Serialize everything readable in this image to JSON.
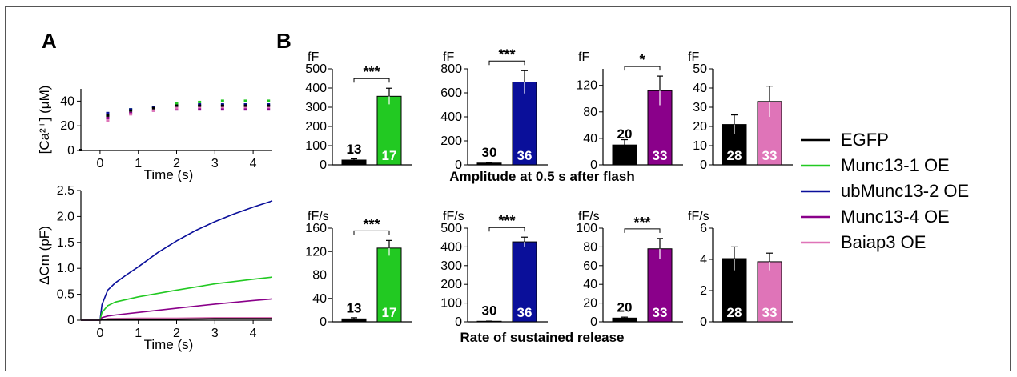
{
  "panels": {
    "a": "A",
    "b": "B"
  },
  "colors": {
    "EGFP": "#000000",
    "Munc13-1 OE": "#22c922",
    "ubMunc13-2 OE": "#0a0f9a",
    "Munc13-4 OE": "#8a008a",
    "Baiap3 OE": "#df74b8"
  },
  "legend": [
    "EGFP",
    "Munc13-1 OE",
    "ubMunc13-2 OE",
    "Munc13-4 OE",
    "Baiap3 OE"
  ],
  "captions": {
    "amplitude": "Amplitude at 0.5 s after flash",
    "rate": "Rate of sustained release"
  },
  "chart_data": [
    {
      "id": "ca",
      "type": "scatter",
      "ylabel": "[Ca²⁺] (μM)",
      "xlabel": "Time (s)",
      "xlim": [
        -0.5,
        4.5
      ],
      "ylim": [
        0,
        50
      ],
      "xticks": [
        0,
        1,
        2,
        3,
        4
      ],
      "yticks": [
        0,
        20,
        40
      ],
      "x": [
        -0.5,
        0.2,
        0.8,
        1.4,
        2.0,
        2.6,
        3.2,
        3.8,
        4.4
      ],
      "series": [
        {
          "name": "Munc13-1 OE",
          "values": [
            0,
            28,
            33,
            35,
            38,
            39,
            40,
            40,
            40
          ]
        },
        {
          "name": "ubMunc13-2 OE",
          "values": [
            0,
            30,
            33,
            35,
            36,
            37,
            37,
            37,
            37
          ]
        },
        {
          "name": "Munc13-4 OE",
          "values": [
            0,
            26,
            30,
            32,
            33,
            33,
            33,
            33,
            33
          ]
        },
        {
          "name": "Baiap3 OE",
          "values": [
            0,
            24,
            29,
            32,
            34,
            35,
            35,
            35,
            35
          ]
        },
        {
          "name": "EGFP",
          "values": [
            0,
            28,
            32,
            34,
            36,
            36,
            36,
            36,
            36
          ]
        }
      ]
    },
    {
      "id": "cm",
      "type": "line",
      "ylabel": "ΔCm (pF)",
      "xlabel": "Time (s)",
      "xlim": [
        -0.5,
        4.5
      ],
      "ylim": [
        0,
        2.5
      ],
      "xticks": [
        0,
        1,
        2,
        3,
        4
      ],
      "yticks": [
        0,
        0.5,
        1.0,
        1.5,
        2.0,
        2.5
      ],
      "ytick_labels": [
        "0",
        "0.5",
        "1.0",
        "1.5",
        "2.0",
        "2.5"
      ],
      "series": [
        {
          "name": "ubMunc13-2 OE",
          "x": [
            -0.5,
            0,
            0.05,
            0.2,
            0.4,
            0.7,
            1,
            1.5,
            2,
            2.5,
            3,
            3.5,
            4,
            4.5
          ],
          "values": [
            0,
            0,
            0.3,
            0.58,
            0.72,
            0.88,
            1.03,
            1.3,
            1.53,
            1.73,
            1.9,
            2.05,
            2.18,
            2.3
          ]
        },
        {
          "name": "Munc13-1 OE",
          "x": [
            -0.5,
            0,
            0.05,
            0.2,
            0.4,
            1,
            2,
            3,
            4,
            4.5
          ],
          "values": [
            0,
            0,
            0.15,
            0.28,
            0.35,
            0.45,
            0.58,
            0.7,
            0.79,
            0.83
          ]
        },
        {
          "name": "Munc13-4 OE",
          "x": [
            -0.5,
            0,
            0.05,
            0.2,
            0.4,
            1,
            2,
            3,
            4,
            4.5
          ],
          "values": [
            0,
            0,
            0.05,
            0.08,
            0.1,
            0.15,
            0.23,
            0.31,
            0.38,
            0.41
          ]
        },
        {
          "name": "Baiap3 OE",
          "x": [
            -0.5,
            0,
            0.2,
            1,
            2,
            3,
            4,
            4.5
          ],
          "values": [
            0,
            0,
            0.03,
            0.04,
            0.04,
            0.05,
            0.05,
            0.05
          ]
        },
        {
          "name": "EGFP",
          "x": [
            -0.5,
            0,
            0.2,
            1,
            2,
            3,
            4,
            4.5
          ],
          "values": [
            0,
            0,
            0.02,
            0.02,
            0.02,
            0.03,
            0.03,
            0.03
          ]
        }
      ]
    },
    {
      "id": "b1",
      "type": "bar",
      "unit": "fF",
      "ylim": [
        0,
        500
      ],
      "yticks": [
        0,
        100,
        200,
        300,
        400,
        500
      ],
      "categories": [
        "EGFP",
        "Munc13-1 OE"
      ],
      "values": [
        25,
        357
      ],
      "errors": [
        6,
        42
      ],
      "n": [
        "13",
        "17"
      ],
      "significance": "***"
    },
    {
      "id": "b2",
      "type": "bar",
      "unit": "fF",
      "ylim": [
        0,
        800
      ],
      "yticks": [
        0,
        200,
        400,
        600,
        800
      ],
      "categories": [
        "EGFP",
        "ubMunc13-2 OE"
      ],
      "values": [
        15,
        690
      ],
      "errors": [
        4,
        95
      ],
      "n": [
        "30",
        "36"
      ],
      "significance": "***"
    },
    {
      "id": "b3",
      "type": "bar",
      "unit": "fF",
      "ylim": [
        0,
        145
      ],
      "yticks": [
        0,
        40,
        80,
        120
      ],
      "categories": [
        "EGFP",
        "Munc13-4 OE"
      ],
      "values": [
        30,
        112
      ],
      "errors": [
        8,
        22
      ],
      "n": [
        "20",
        "33"
      ],
      "significance": "*"
    },
    {
      "id": "b4",
      "type": "bar",
      "unit": "fF",
      "ylim": [
        0,
        50
      ],
      "yticks": [
        0,
        10,
        20,
        30,
        40,
        50
      ],
      "categories": [
        "EGFP",
        "Baiap3 OE"
      ],
      "values": [
        21,
        33
      ],
      "errors": [
        5,
        8
      ],
      "n": [
        "28",
        "33"
      ],
      "significance": ""
    },
    {
      "id": "b5",
      "type": "bar",
      "unit": "fF/s",
      "ylim": [
        0,
        160
      ],
      "yticks": [
        0,
        40,
        80,
        120,
        160
      ],
      "categories": [
        "EGFP",
        "Munc13-1 OE"
      ],
      "values": [
        5,
        126
      ],
      "errors": [
        2,
        13
      ],
      "n": [
        "13",
        "17"
      ],
      "significance": "***"
    },
    {
      "id": "b6",
      "type": "bar",
      "unit": "fF/s",
      "ylim": [
        0,
        500
      ],
      "yticks": [
        0,
        100,
        200,
        300,
        400,
        500
      ],
      "categories": [
        "EGFP",
        "ubMunc13-2 OE"
      ],
      "values": [
        3,
        427
      ],
      "errors": [
        1,
        25
      ],
      "n": [
        "30",
        "36"
      ],
      "significance": "***"
    },
    {
      "id": "b7",
      "type": "bar",
      "unit": "fF/s",
      "ylim": [
        0,
        100
      ],
      "yticks": [
        0,
        20,
        40,
        60,
        80,
        100
      ],
      "categories": [
        "EGFP",
        "Munc13-4 OE"
      ],
      "values": [
        4,
        78
      ],
      "errors": [
        1,
        11
      ],
      "n": [
        "20",
        "33"
      ],
      "significance": "***"
    },
    {
      "id": "b8",
      "type": "bar",
      "unit": "fF/s",
      "ylim": [
        0,
        6
      ],
      "yticks": [
        0,
        2,
        4,
        6
      ],
      "categories": [
        "EGFP",
        "Baiap3 OE"
      ],
      "values": [
        4.05,
        3.85
      ],
      "errors": [
        0.75,
        0.55
      ],
      "n": [
        "28",
        "33"
      ],
      "significance": ""
    }
  ]
}
